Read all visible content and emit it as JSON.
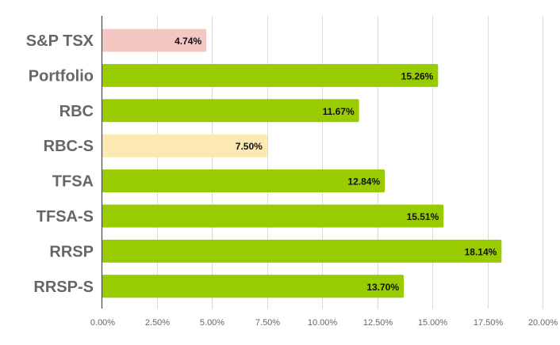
{
  "chart_data": {
    "type": "bar",
    "orientation": "horizontal",
    "categories": [
      "S&P TSX",
      "Portfolio",
      "RBC",
      "RBC-S",
      "TFSA",
      "TFSA-S",
      "RRSP",
      "RRSP-S"
    ],
    "values": [
      4.74,
      15.26,
      11.67,
      7.5,
      12.84,
      15.51,
      18.14,
      13.7
    ],
    "data_labels": [
      "4.74%",
      "15.26%",
      "11.67%",
      "7.50%",
      "12.84%",
      "15.51%",
      "18.14%",
      "13.70%"
    ],
    "bar_colors": [
      "#f4c7c3",
      "#99cc00",
      "#99cc00",
      "#fce8b2",
      "#99cc00",
      "#99cc00",
      "#99cc00",
      "#99cc00"
    ],
    "x_ticks": [
      "0.00%",
      "2.50%",
      "5.00%",
      "7.50%",
      "10.00%",
      "12.50%",
      "15.00%",
      "17.50%",
      "20.00%"
    ],
    "xlim": [
      0,
      20
    ],
    "grid": "vertical",
    "title": "",
    "xlabel": "",
    "ylabel": ""
  }
}
